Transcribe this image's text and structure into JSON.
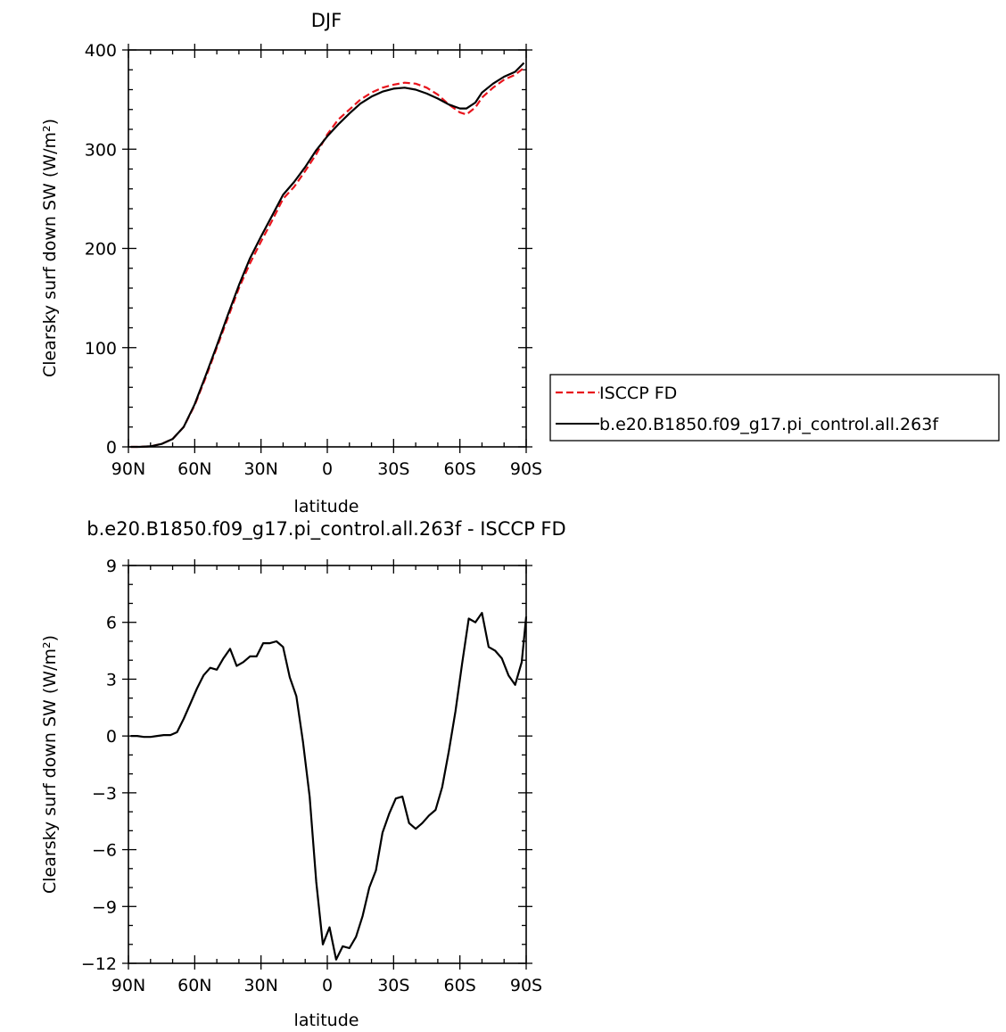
{
  "chart_data": [
    {
      "type": "line",
      "title": "DJF",
      "xlabel": "latitude",
      "ylabel": "Clearsky surf down SW (W/m²)",
      "xlim": [
        90,
        -90
      ],
      "ylim": [
        0,
        400
      ],
      "xticks": [
        {
          "v": 90,
          "label": "90N"
        },
        {
          "v": 60,
          "label": "60N"
        },
        {
          "v": 30,
          "label": "30N"
        },
        {
          "v": 0,
          "label": "0"
        },
        {
          "v": -30,
          "label": "30S"
        },
        {
          "v": -60,
          "label": "60S"
        },
        {
          "v": -90,
          "label": "90S"
        }
      ],
      "yticks": [
        {
          "v": 0,
          "label": "0"
        },
        {
          "v": 100,
          "label": "100"
        },
        {
          "v": 200,
          "label": "200"
        },
        {
          "v": 300,
          "label": "300"
        },
        {
          "v": 400,
          "label": "400"
        }
      ],
      "legend_position": "right",
      "series": [
        {
          "name": "ISCCP FD",
          "color": "#e8141c",
          "dash": "dashed",
          "points": [
            [
              89,
              0
            ],
            [
              85,
              0
            ],
            [
              80,
              0.5
            ],
            [
              75,
              3
            ],
            [
              70,
              8
            ],
            [
              65,
              20
            ],
            [
              60,
              42
            ],
            [
              55,
              70
            ],
            [
              50,
              100
            ],
            [
              45,
              130
            ],
            [
              40,
              160
            ],
            [
              35,
              185
            ],
            [
              30,
              207
            ],
            [
              25,
              228
            ],
            [
              20,
              250
            ],
            [
              15,
              262
            ],
            [
              10,
              278
            ],
            [
              5,
              295
            ],
            [
              0,
              315
            ],
            [
              -5,
              330
            ],
            [
              -10,
              340
            ],
            [
              -15,
              350
            ],
            [
              -20,
              357
            ],
            [
              -25,
              362
            ],
            [
              -30,
              365
            ],
            [
              -35,
              367
            ],
            [
              -40,
              366
            ],
            [
              -45,
              362
            ],
            [
              -50,
              355
            ],
            [
              -55,
              345
            ],
            [
              -60,
              337
            ],
            [
              -63,
              335
            ],
            [
              -67,
              342
            ],
            [
              -70,
              352
            ],
            [
              -75,
              362
            ],
            [
              -80,
              370
            ],
            [
              -85,
              375
            ],
            [
              -89,
              382
            ]
          ]
        },
        {
          "name": "b.e20.B1850.f09_g17.pi_control.all.263f",
          "color": "#000000",
          "dash": "solid",
          "points": [
            [
              89,
              0
            ],
            [
              85,
              0
            ],
            [
              80,
              0.5
            ],
            [
              75,
              3
            ],
            [
              70,
              8
            ],
            [
              65,
              20
            ],
            [
              60,
              43
            ],
            [
              55,
              72
            ],
            [
              50,
              102
            ],
            [
              45,
              133
            ],
            [
              40,
              163
            ],
            [
              35,
              190
            ],
            [
              30,
              212
            ],
            [
              25,
              233
            ],
            [
              20,
              254
            ],
            [
              15,
              267
            ],
            [
              10,
              282
            ],
            [
              5,
              299
            ],
            [
              0,
              313
            ],
            [
              -5,
              325
            ],
            [
              -10,
              336
            ],
            [
              -15,
              346
            ],
            [
              -20,
              353
            ],
            [
              -25,
              358
            ],
            [
              -30,
              361
            ],
            [
              -35,
              362
            ],
            [
              -40,
              360
            ],
            [
              -45,
              356
            ],
            [
              -50,
              351
            ],
            [
              -55,
              345
            ],
            [
              -60,
              341
            ],
            [
              -63,
              341
            ],
            [
              -67,
              347
            ],
            [
              -70,
              357
            ],
            [
              -75,
              366
            ],
            [
              -80,
              373
            ],
            [
              -85,
              378
            ],
            [
              -89,
              387
            ]
          ]
        }
      ]
    },
    {
      "type": "line",
      "title": "b.e20.B1850.f09_g17.pi_control.all.263f - ISCCP FD",
      "xlabel": "latitude",
      "ylabel": "Clearsky surf down SW (W/m²)",
      "xlim": [
        90,
        -90
      ],
      "ylim": [
        -12,
        9
      ],
      "xticks": [
        {
          "v": 90,
          "label": "90N"
        },
        {
          "v": 60,
          "label": "60N"
        },
        {
          "v": 30,
          "label": "30N"
        },
        {
          "v": 0,
          "label": "0"
        },
        {
          "v": -30,
          "label": "30S"
        },
        {
          "v": -60,
          "label": "60S"
        },
        {
          "v": -90,
          "label": "90S"
        }
      ],
      "yticks": [
        {
          "v": -12,
          "label": "−12"
        },
        {
          "v": -9,
          "label": "−9"
        },
        {
          "v": -6,
          "label": "−6"
        },
        {
          "v": -3,
          "label": "−3"
        },
        {
          "v": 0,
          "label": "0"
        },
        {
          "v": 3,
          "label": "3"
        },
        {
          "v": 6,
          "label": "6"
        },
        {
          "v": 9,
          "label": "9"
        }
      ],
      "series": [
        {
          "color": "#000000",
          "dash": "solid",
          "points": [
            [
              89,
              0
            ],
            [
              86,
              0
            ],
            [
              83,
              -0.05
            ],
            [
              80,
              -0.05
            ],
            [
              77,
              0
            ],
            [
              74,
              0.05
            ],
            [
              71,
              0.05
            ],
            [
              68,
              0.2
            ],
            [
              65,
              0.9
            ],
            [
              62,
              1.7
            ],
            [
              59,
              2.5
            ],
            [
              56,
              3.2
            ],
            [
              53,
              3.6
            ],
            [
              50,
              3.5
            ],
            [
              47,
              4.1
            ],
            [
              44,
              4.6
            ],
            [
              41,
              3.7
            ],
            [
              38,
              3.9
            ],
            [
              35,
              4.2
            ],
            [
              32,
              4.2
            ],
            [
              29,
              4.9
            ],
            [
              26,
              4.9
            ],
            [
              23,
              5.0
            ],
            [
              20,
              4.7
            ],
            [
              17,
              3.1
            ],
            [
              14,
              2.1
            ],
            [
              11,
              -0.3
            ],
            [
              8,
              -3.2
            ],
            [
              5,
              -7.7
            ],
            [
              2,
              -11.0
            ],
            [
              -1,
              -10.1
            ],
            [
              -4,
              -11.8
            ],
            [
              -7,
              -11.1
            ],
            [
              -10,
              -11.2
            ],
            [
              -13,
              -10.6
            ],
            [
              -16,
              -9.5
            ],
            [
              -19,
              -8.0
            ],
            [
              -22,
              -7.1
            ],
            [
              -25,
              -5.1
            ],
            [
              -28,
              -4.1
            ],
            [
              -31,
              -3.3
            ],
            [
              -34,
              -3.2
            ],
            [
              -37,
              -4.6
            ],
            [
              -40,
              -4.9
            ],
            [
              -43,
              -4.6
            ],
            [
              -46,
              -4.2
            ],
            [
              -49,
              -3.9
            ],
            [
              -52,
              -2.7
            ],
            [
              -55,
              -0.8
            ],
            [
              -58,
              1.3
            ],
            [
              -61,
              3.8
            ],
            [
              -64,
              6.2
            ],
            [
              -67,
              6.0
            ],
            [
              -70,
              6.5
            ],
            [
              -73,
              4.7
            ],
            [
              -76,
              4.5
            ],
            [
              -79,
              4.1
            ],
            [
              -82,
              3.2
            ],
            [
              -85,
              2.7
            ],
            [
              -88,
              3.9
            ],
            [
              -90,
              6.3
            ]
          ]
        }
      ]
    }
  ]
}
